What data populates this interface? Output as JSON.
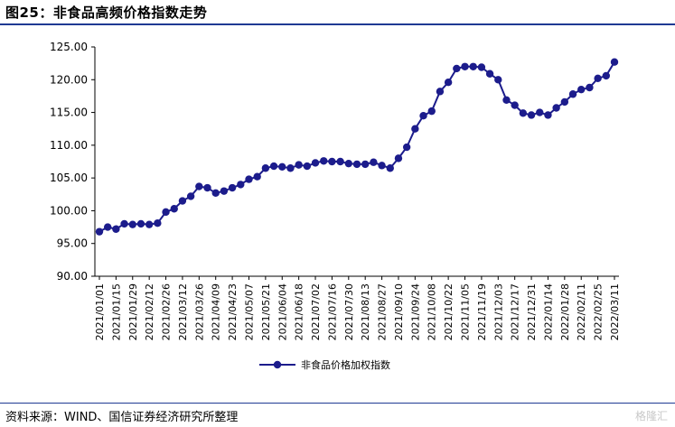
{
  "figure_title": "图25：非食品高频价格指数走势",
  "source_text": "资料来源：WIND、国信证券经济研究所整理",
  "watermark": "格隆汇",
  "colors": {
    "series": "#1c1c8c",
    "rule": "#1f3a93",
    "axis": "#000000"
  },
  "chart_data": {
    "type": "line",
    "title": "",
    "xlabel": "",
    "ylabel": "",
    "ylim": [
      90,
      125
    ],
    "y_ticks": [
      "90.00",
      "95.00",
      "100.00",
      "105.00",
      "110.00",
      "115.00",
      "120.00",
      "125.00"
    ],
    "x_tick_labels": [
      "2021/01/01",
      "2021/01/15",
      "2021/01/29",
      "2021/02/12",
      "2021/02/26",
      "2021/03/12",
      "2021/03/26",
      "2021/04/09",
      "2021/04/23",
      "2021/05/07",
      "2021/05/21",
      "2021/06/04",
      "2021/06/18",
      "2021/07/02",
      "2021/07/16",
      "2021/07/30",
      "2021/08/13",
      "2021/08/27",
      "2021/09/10",
      "2021/09/24",
      "2021/10/08",
      "2021/10/22",
      "2021/11/05",
      "2021/11/19",
      "2021/12/03",
      "2021/12/17",
      "2021/12/31",
      "2022/01/14",
      "2022/01/28",
      "2022/02/11",
      "2022/02/25",
      "2022/03/11"
    ],
    "grid": false,
    "legend_position": "bottom-center",
    "series": [
      {
        "name": "非食品价格加权指数",
        "values": [
          96.8,
          97.5,
          97.2,
          98.0,
          97.9,
          98.0,
          97.9,
          98.1,
          99.8,
          100.3,
          101.5,
          102.2,
          103.7,
          103.5,
          102.7,
          103.0,
          103.5,
          104.0,
          104.8,
          105.2,
          106.5,
          106.8,
          106.7,
          106.5,
          107.0,
          106.8,
          107.3,
          107.6,
          107.5,
          107.5,
          107.2,
          107.1,
          107.1,
          107.4,
          106.9,
          106.5,
          108.0,
          109.7,
          112.5,
          114.5,
          115.2,
          118.2,
          119.6,
          121.7,
          122.0,
          122.0,
          121.9,
          120.9,
          120.0,
          116.9,
          116.1,
          114.9,
          114.6,
          115.0,
          114.6,
          115.7,
          116.6,
          117.8,
          118.5,
          118.8,
          120.2,
          120.6,
          122.7
        ]
      }
    ]
  }
}
